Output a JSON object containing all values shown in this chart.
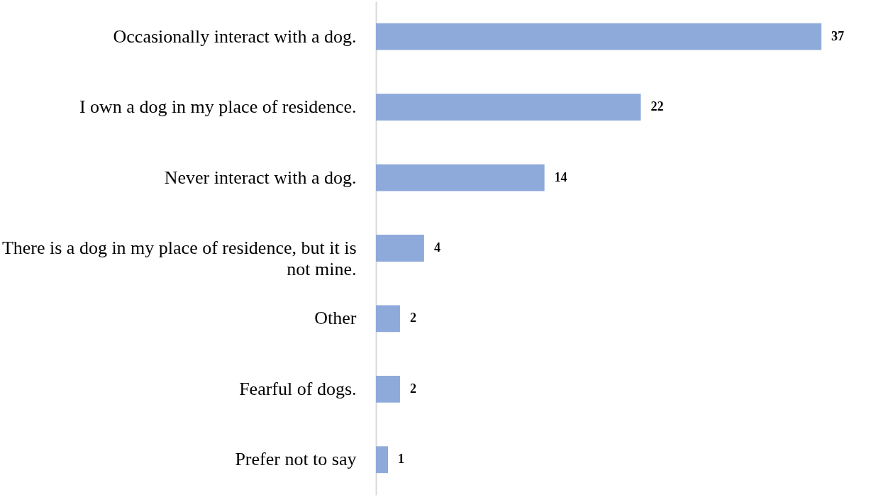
{
  "chart_data": {
    "type": "bar",
    "orientation": "horizontal",
    "categories": [
      "Occasionally interact with a dog.",
      "I own a dog in my place of residence.",
      "Never interact with a dog.",
      "There is a dog in my place of residence, but it is not mine.",
      "Other",
      "Fearful of dogs.",
      "Prefer not to say"
    ],
    "values": [
      37,
      22,
      14,
      4,
      2,
      2,
      1
    ],
    "color": "#8eaadb",
    "data_labels": true,
    "tick_labels": "y"
  }
}
